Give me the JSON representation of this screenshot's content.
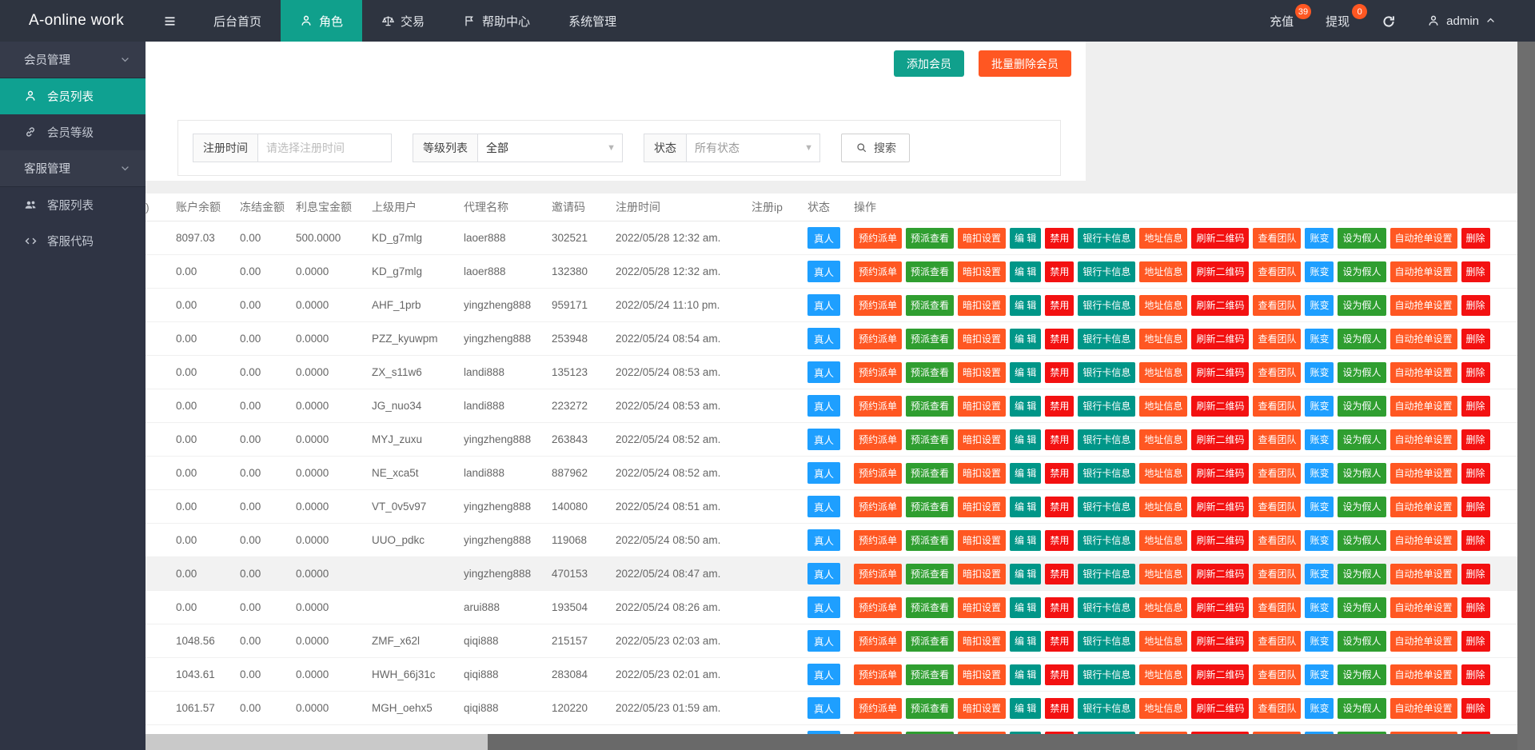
{
  "topbar": {
    "logo": "A-online work",
    "nav": [
      {
        "label": "后台首页",
        "icon": "none",
        "active": false
      },
      {
        "label": "角色",
        "icon": "person",
        "active": true
      },
      {
        "label": "交易",
        "icon": "scale",
        "active": false
      },
      {
        "label": "帮助中心",
        "icon": "flag",
        "active": false
      },
      {
        "label": "系统管理",
        "icon": "none",
        "active": false
      }
    ],
    "recharge": {
      "label": "充值",
      "badge": "39"
    },
    "withdraw": {
      "label": "提现",
      "badge": "0"
    },
    "user": "admin"
  },
  "sidebar": {
    "groups": [
      {
        "label": "会员管理",
        "items": [
          {
            "label": "会员列表",
            "icon": "person",
            "active": true
          },
          {
            "label": "会员等级",
            "icon": "link",
            "active": false
          }
        ]
      },
      {
        "label": "客服管理",
        "items": [
          {
            "label": "客服列表",
            "icon": "users",
            "active": false
          },
          {
            "label": "客服代码",
            "icon": "code",
            "active": false
          }
        ]
      }
    ]
  },
  "toolbar": {
    "add": "添加会员",
    "batch_delete": "批量删除会员"
  },
  "filters": {
    "reg_time_label": "注册时间",
    "reg_time_placeholder": "请选择注册时间",
    "level_label": "等级列表",
    "level_value": "全部",
    "status_label": "状态",
    "status_value": "所有状态",
    "search_label": "搜索"
  },
  "table": {
    "headers": [
      ")",
      "账户余额",
      "冻结金额",
      "利息宝金额",
      "上级用户",
      "代理名称",
      "邀请码",
      "注册时间",
      "注册ip",
      "状态",
      "操作"
    ],
    "status_badge": "真人",
    "highlight_row_index": 10,
    "row_actions": [
      {
        "label": "预约派单",
        "color": "orange"
      },
      {
        "label": "预派查看",
        "color": "green"
      },
      {
        "label": "暗扣设置",
        "color": "orange"
      },
      {
        "label": "编 辑",
        "color": "teal"
      },
      {
        "label": "禁用",
        "color": "red"
      },
      {
        "label": "银行卡信息",
        "color": "teal"
      },
      {
        "label": "地址信息",
        "color": "orange"
      },
      {
        "label": "刷新二维码",
        "color": "red"
      },
      {
        "label": "查看团队",
        "color": "orange"
      },
      {
        "label": "账变",
        "color": "blue"
      },
      {
        "label": "设为假人",
        "color": "green"
      },
      {
        "label": "自动抢单设置",
        "color": "orange"
      },
      {
        "label": "删除",
        "color": "red"
      }
    ],
    "rows": [
      [
        "8097.03",
        "0.00",
        "500.0000",
        "KD_g7mlg",
        "laoer888",
        "302521",
        "2022/05/28 12:32 am.",
        ""
      ],
      [
        "0.00",
        "0.00",
        "0.0000",
        "KD_g7mlg",
        "laoer888",
        "132380",
        "2022/05/28 12:32 am.",
        ""
      ],
      [
        "0.00",
        "0.00",
        "0.0000",
        "AHF_1prb",
        "yingzheng888",
        "959171",
        "2022/05/24 11:10 pm.",
        ""
      ],
      [
        "0.00",
        "0.00",
        "0.0000",
        "PZZ_kyuwpm",
        "yingzheng888",
        "253948",
        "2022/05/24 08:54 am.",
        ""
      ],
      [
        "0.00",
        "0.00",
        "0.0000",
        "ZX_s11w6",
        "landi888",
        "135123",
        "2022/05/24 08:53 am.",
        ""
      ],
      [
        "0.00",
        "0.00",
        "0.0000",
        "JG_nuo34",
        "landi888",
        "223272",
        "2022/05/24 08:53 am.",
        ""
      ],
      [
        "0.00",
        "0.00",
        "0.0000",
        "MYJ_zuxu",
        "yingzheng888",
        "263843",
        "2022/05/24 08:52 am.",
        ""
      ],
      [
        "0.00",
        "0.00",
        "0.0000",
        "NE_xca5t",
        "landi888",
        "887962",
        "2022/05/24 08:52 am.",
        ""
      ],
      [
        "0.00",
        "0.00",
        "0.0000",
        "VT_0v5v97",
        "yingzheng888",
        "140080",
        "2022/05/24 08:51 am.",
        ""
      ],
      [
        "0.00",
        "0.00",
        "0.0000",
        "UUO_pdkc",
        "yingzheng888",
        "119068",
        "2022/05/24 08:50 am.",
        ""
      ],
      [
        "0.00",
        "0.00",
        "0.0000",
        "",
        "yingzheng888",
        "470153",
        "2022/05/24 08:47 am.",
        ""
      ],
      [
        "0.00",
        "0.00",
        "0.0000",
        "",
        "arui888",
        "193504",
        "2022/05/24 08:26 am.",
        ""
      ],
      [
        "1048.56",
        "0.00",
        "0.0000",
        "ZMF_x62l",
        "qiqi888",
        "215157",
        "2022/05/23 02:03 am.",
        ""
      ],
      [
        "1043.61",
        "0.00",
        "0.0000",
        "HWH_66j31c",
        "qiqi888",
        "283084",
        "2022/05/23 02:01 am.",
        ""
      ],
      [
        "1061.57",
        "0.00",
        "0.0000",
        "MGH_oehx5",
        "qiqi888",
        "120220",
        "2022/05/23 01:59 am.",
        ""
      ],
      [
        "",
        "",
        "",
        "",
        "",
        "",
        "",
        ""
      ]
    ]
  },
  "colors": {
    "brand_teal": "#10a08c",
    "orange": "#ff5722",
    "green": "#2f9e30",
    "teal": "#009688",
    "red": "#f31111",
    "blue": "#1e9fff",
    "badge_blue": "#1e9fff",
    "badge_orange": "#ff5722"
  }
}
